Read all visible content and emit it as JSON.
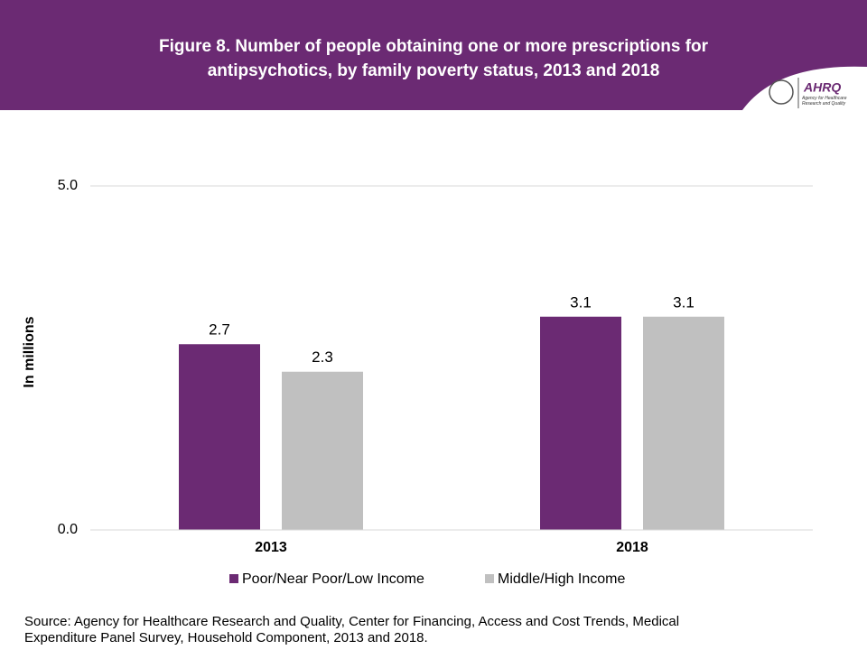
{
  "chart_data": {
    "type": "bar",
    "title": "Figure 8. Number of people obtaining one or more prescriptions for antipsychotics, by family poverty status, 2013 and 2018",
    "y_label": "In millions",
    "categories": [
      "2013",
      "2018"
    ],
    "series": [
      {
        "name": "Poor/Near Poor/Low Income",
        "color": "#6b2a73",
        "values": [
          2.7,
          3.1
        ]
      },
      {
        "name": "Middle/High Income",
        "color": "#c0c0c0",
        "values": [
          2.3,
          3.1
        ]
      }
    ],
    "ylim": [
      0,
      5
    ],
    "yticks": [
      {
        "value": 0,
        "label": "0.0"
      },
      {
        "value": 5,
        "label": "5.0"
      }
    ],
    "grid": true,
    "legend": "bottom",
    "logo": {
      "name": "AHRQ",
      "text": "Agency for Healthcare Research and Quality"
    },
    "source": "Source: Agency for Healthcare Research and Quality, Center for Financing, Access and Cost Trends, Medical Expenditure Panel Survey, Household Component, 2013 and 2018."
  }
}
